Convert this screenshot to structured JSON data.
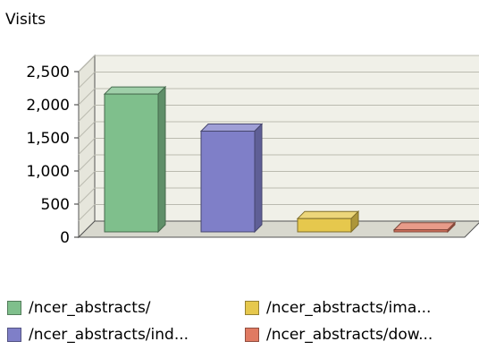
{
  "chart_data": {
    "type": "bar",
    "title": "",
    "ylabel": "Visits",
    "xlabel": "",
    "ylim": [
      0,
      2500
    ],
    "yticks": [
      0,
      500,
      1000,
      1500,
      2000,
      2500
    ],
    "ytick_labels": [
      "0",
      "500",
      "1,000",
      "1,500",
      "2,000",
      "2,500"
    ],
    "grid": true,
    "legend_position": "bottom",
    "categories": [
      "/ncer_abstracts/",
      "/ncer_abstracts/ind...",
      "/ncer_abstracts/ima...",
      "/ncer_abstracts/dow..."
    ],
    "values": [
      2080,
      1520,
      200,
      30
    ],
    "colors": [
      "#7fbf8c",
      "#7f7fc8",
      "#e6c84d",
      "#e07a62"
    ]
  },
  "legend": {
    "items": [
      {
        "label": "/ncer_abstracts/",
        "color": "#7fbf8c"
      },
      {
        "label": "/ncer_abstracts/ima...",
        "color": "#e6c84d"
      },
      {
        "label": "/ncer_abstracts/ind...",
        "color": "#7f7fc8"
      },
      {
        "label": "/ncer_abstracts/dow...",
        "color": "#e07a62"
      }
    ]
  }
}
